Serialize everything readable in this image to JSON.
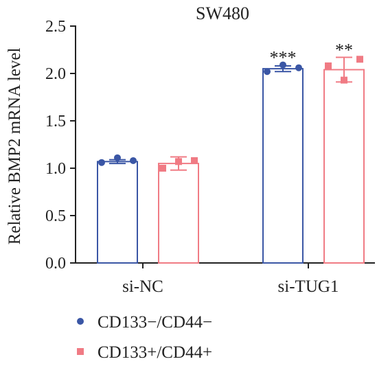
{
  "chart_data": {
    "type": "bar",
    "title": "SW480",
    "xlabel": "",
    "ylabel": "Relative BMP2 mRNA level",
    "ylim": [
      0,
      2.5
    ],
    "yticks": [
      "0.0",
      "0.5",
      "1.0",
      "1.5",
      "2.0",
      "2.5"
    ],
    "categories": [
      "si-NC",
      "si-TUG1"
    ],
    "grid": false,
    "legend_position": "bottom-left",
    "series": [
      {
        "name": "CD133−/CD44−",
        "color": "#3a56a5",
        "marker": "circle",
        "values": [
          1.07,
          2.05
        ],
        "errors": [
          0.02,
          0.03
        ],
        "points": [
          [
            1.06,
            1.11,
            1.08
          ],
          [
            2.02,
            2.09,
            2.06
          ]
        ],
        "annotations": [
          "",
          "***"
        ]
      },
      {
        "name": "CD133+/CD44+",
        "color": "#f07b84",
        "marker": "square",
        "values": [
          1.05,
          2.04
        ],
        "errors": [
          0.07,
          0.13
        ],
        "points": [
          [
            1.0,
            1.07,
            1.08
          ],
          [
            2.08,
            1.93,
            2.15
          ]
        ],
        "annotations": [
          "",
          "**"
        ]
      }
    ]
  }
}
